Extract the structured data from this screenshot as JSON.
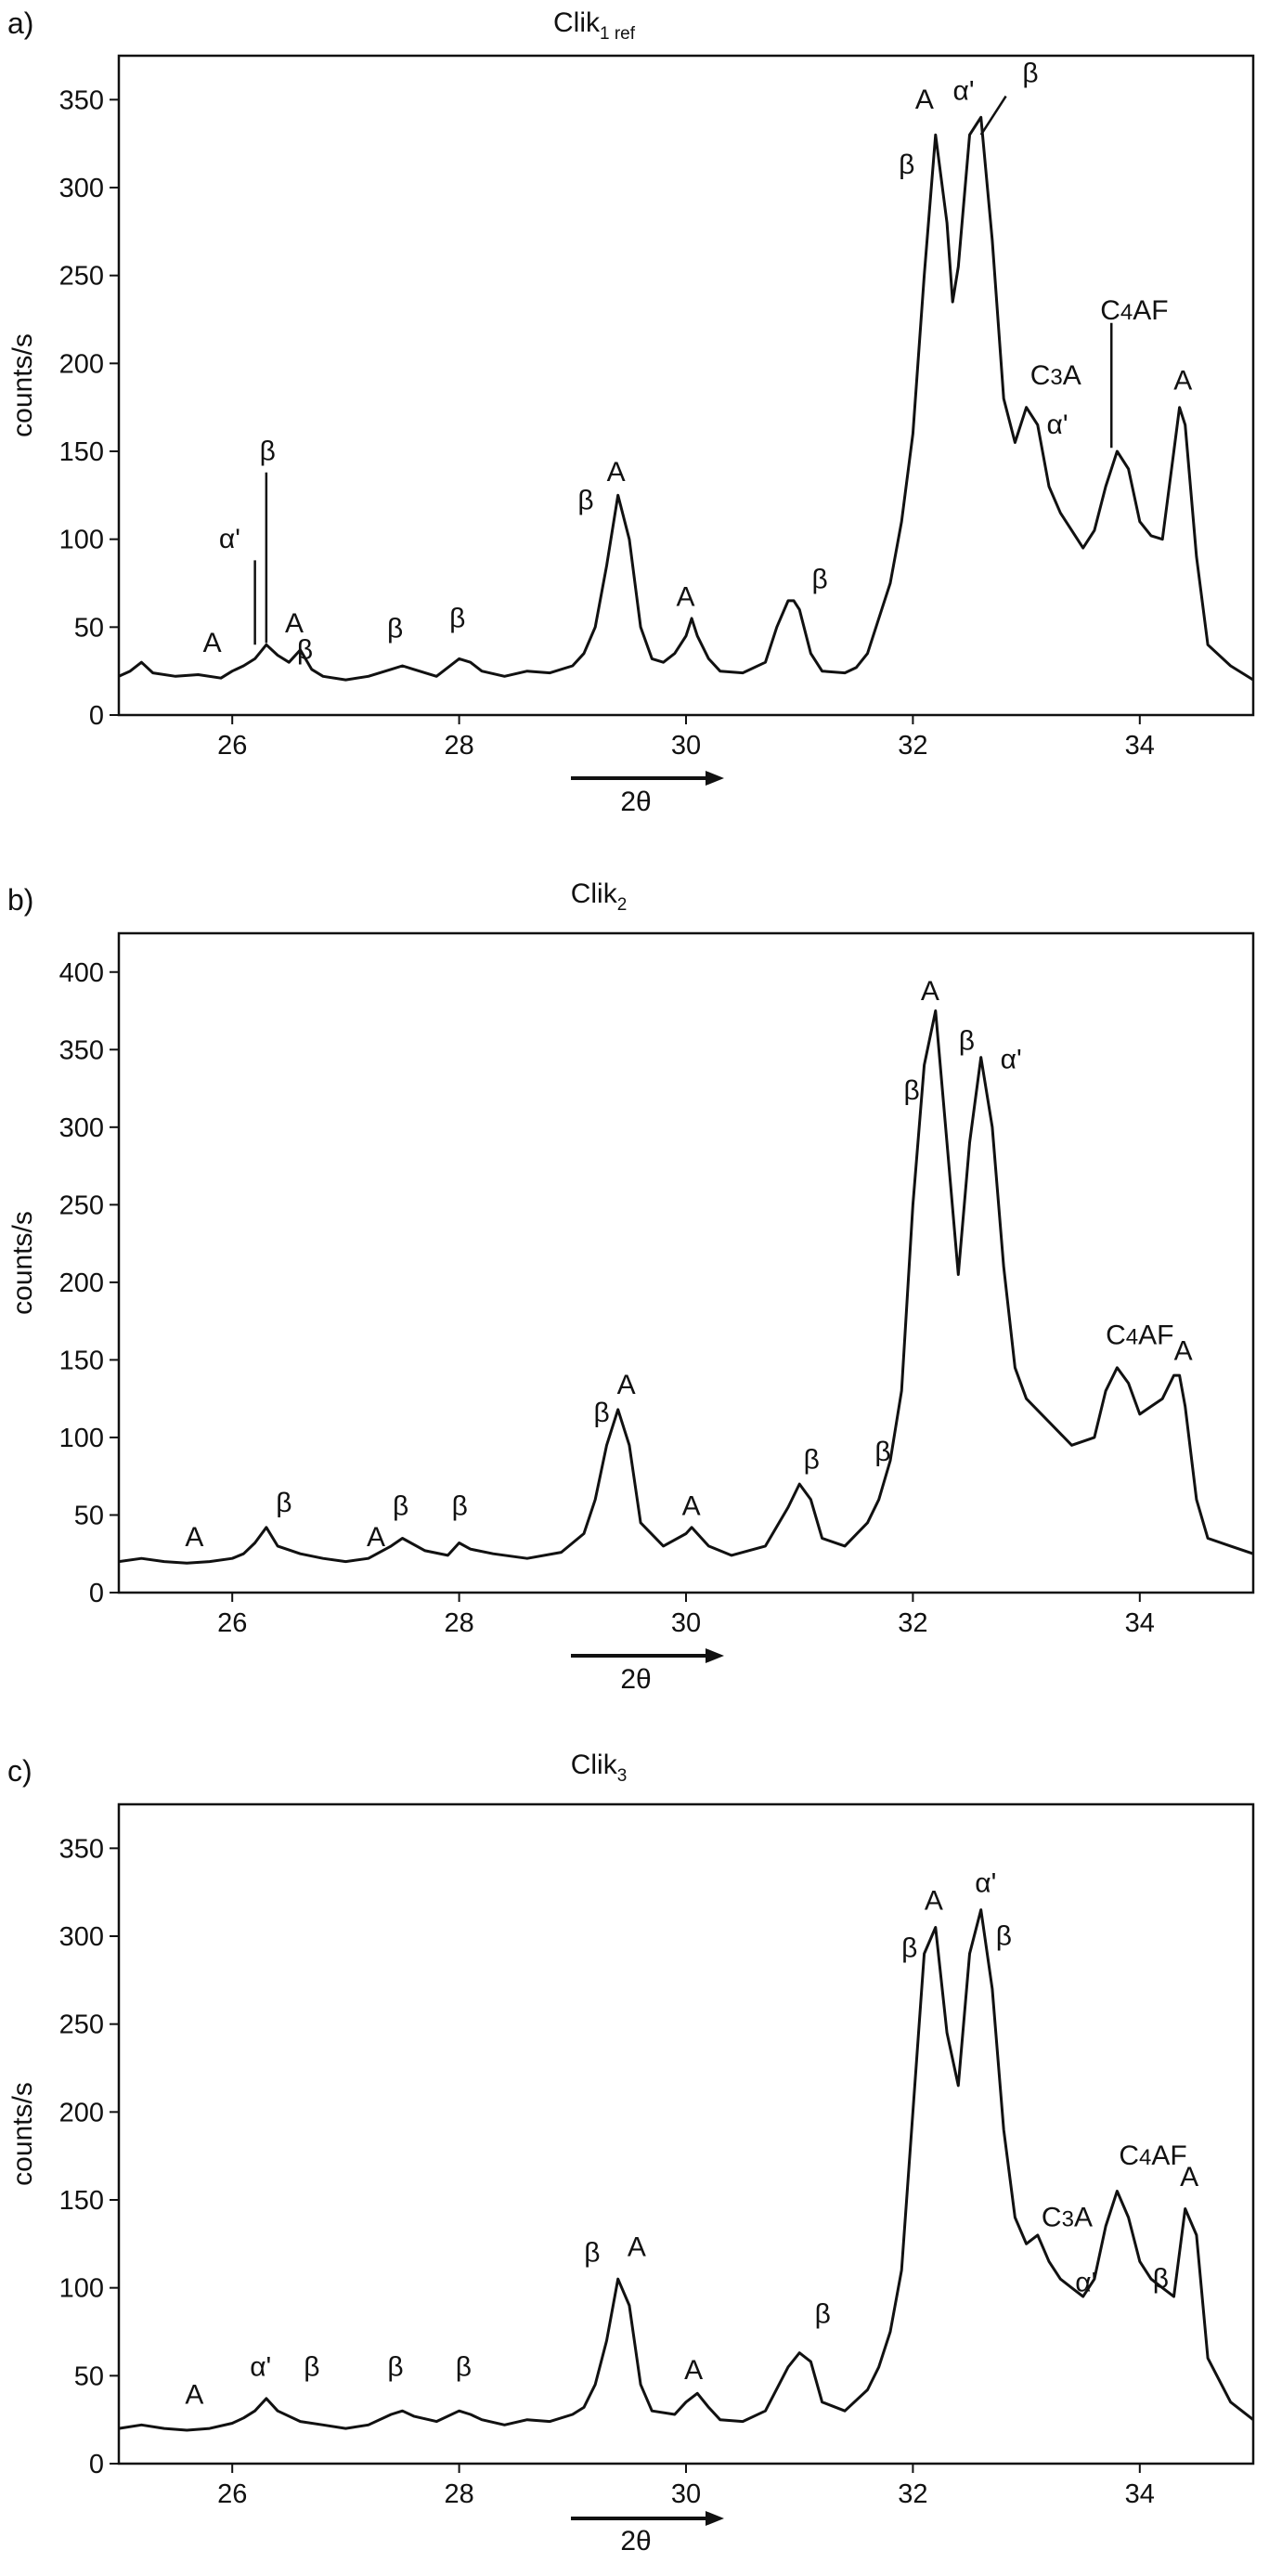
{
  "chart_data": [
    {
      "type": "line",
      "panel_label": "a)",
      "title_main": "Clik",
      "title_sub": "1 ref",
      "xlabel": "2θ",
      "ylabel": "counts/s",
      "xlim": [
        25,
        35
      ],
      "ylim": [
        0,
        375
      ],
      "xticks": [
        26,
        28,
        30,
        32,
        34
      ],
      "yticks": [
        0,
        50,
        100,
        150,
        200,
        250,
        300,
        350
      ],
      "series": [
        {
          "x": [
            25.0,
            25.1,
            25.2,
            25.3,
            25.5,
            25.7,
            25.9,
            26.0,
            26.1,
            26.2,
            26.3,
            26.4,
            26.5,
            26.6,
            26.7,
            26.8,
            27.0,
            27.2,
            27.4,
            27.5,
            27.6,
            27.8,
            28.0,
            28.1,
            28.2,
            28.4,
            28.6,
            28.8,
            29.0,
            29.1,
            29.2,
            29.3,
            29.4,
            29.5,
            29.6,
            29.7,
            29.8,
            29.9,
            30.0,
            30.05,
            30.1,
            30.2,
            30.3,
            30.5,
            30.7,
            30.8,
            30.9,
            30.95,
            31.0,
            31.1,
            31.2,
            31.4,
            31.5,
            31.6,
            31.7,
            31.8,
            31.9,
            32.0,
            32.1,
            32.2,
            32.3,
            32.35,
            32.4,
            32.5,
            32.6,
            32.7,
            32.8,
            32.9,
            33.0,
            33.1,
            33.2,
            33.3,
            33.4,
            33.5,
            33.6,
            33.7,
            33.8,
            33.9,
            34.0,
            34.1,
            34.2,
            34.3,
            34.35,
            34.4,
            34.5,
            34.6,
            34.8,
            35.0
          ],
          "y": [
            22,
            25,
            30,
            24,
            22,
            23,
            21,
            25,
            28,
            32,
            40,
            34,
            30,
            37,
            26,
            22,
            20,
            22,
            26,
            28,
            26,
            22,
            32,
            30,
            25,
            22,
            25,
            24,
            28,
            35,
            50,
            85,
            125,
            100,
            50,
            32,
            30,
            35,
            45,
            55,
            45,
            32,
            25,
            24,
            30,
            50,
            65,
            65,
            60,
            35,
            25,
            24,
            27,
            35,
            55,
            75,
            110,
            160,
            250,
            330,
            280,
            235,
            255,
            330,
            340,
            270,
            180,
            155,
            175,
            165,
            130,
            115,
            105,
            95,
            105,
            130,
            150,
            140,
            110,
            102,
            100,
            150,
            175,
            165,
            90,
            40,
            28,
            20
          ]
        }
      ],
      "annotations": [
        "β",
        "A",
        "α'",
        "β",
        "C3A",
        "α'",
        "C4AF",
        "A",
        "β",
        "A",
        "A",
        "β",
        "α'",
        "β",
        "A",
        "A",
        "β",
        "β",
        "β"
      ]
    },
    {
      "type": "line",
      "panel_label": "b)",
      "title_main": "Clik",
      "title_sub": "2",
      "xlabel": "2θ",
      "ylabel": "counts/s",
      "xlim": [
        25,
        35
      ],
      "ylim": [
        0,
        425
      ],
      "xticks": [
        26,
        28,
        30,
        32,
        34
      ],
      "yticks": [
        0,
        50,
        100,
        150,
        200,
        250,
        300,
        350,
        400
      ],
      "series": [
        {
          "x": [
            25.0,
            25.2,
            25.4,
            25.6,
            25.8,
            26.0,
            26.1,
            26.2,
            26.3,
            26.4,
            26.6,
            26.8,
            27.0,
            27.2,
            27.4,
            27.5,
            27.7,
            27.9,
            28.0,
            28.1,
            28.3,
            28.6,
            28.9,
            29.1,
            29.2,
            29.3,
            29.4,
            29.5,
            29.6,
            29.8,
            30.0,
            30.05,
            30.2,
            30.4,
            30.7,
            30.9,
            31.0,
            31.1,
            31.2,
            31.4,
            31.6,
            31.7,
            31.8,
            31.9,
            32.0,
            32.1,
            32.2,
            32.3,
            32.4,
            32.5,
            32.6,
            32.7,
            32.8,
            32.9,
            33.0,
            33.2,
            33.4,
            33.6,
            33.7,
            33.8,
            33.9,
            34.0,
            34.1,
            34.2,
            34.3,
            34.35,
            34.4,
            34.5,
            34.6,
            34.8,
            35.0
          ],
          "y": [
            20,
            22,
            20,
            19,
            20,
            22,
            25,
            32,
            42,
            30,
            25,
            22,
            20,
            22,
            30,
            35,
            27,
            24,
            32,
            28,
            25,
            22,
            26,
            38,
            60,
            95,
            118,
            95,
            45,
            30,
            38,
            42,
            30,
            24,
            30,
            55,
            70,
            60,
            35,
            30,
            45,
            60,
            85,
            130,
            250,
            340,
            375,
            290,
            205,
            290,
            345,
            300,
            210,
            145,
            125,
            110,
            95,
            100,
            130,
            145,
            135,
            115,
            120,
            125,
            140,
            140,
            120,
            60,
            35,
            30,
            25
          ]
        }
      ],
      "annotations": [
        "A",
        "β",
        "A",
        "β",
        "β",
        "β",
        "A",
        "A",
        "β",
        "β",
        "β",
        "A",
        "β",
        "α'",
        "C4AF",
        "A"
      ]
    },
    {
      "type": "line",
      "panel_label": "c)",
      "title_main": "Clik",
      "title_sub": "3",
      "xlabel": "2θ",
      "ylabel": "counts/s",
      "xlim": [
        25,
        35
      ],
      "ylim": [
        0,
        375
      ],
      "xticks": [
        26,
        28,
        30,
        32,
        34
      ],
      "yticks": [
        0,
        50,
        100,
        150,
        200,
        250,
        300,
        350
      ],
      "series": [
        {
          "x": [
            25.0,
            25.2,
            25.4,
            25.6,
            25.8,
            26.0,
            26.1,
            26.2,
            26.3,
            26.4,
            26.6,
            26.8,
            27.0,
            27.2,
            27.4,
            27.5,
            27.6,
            27.8,
            28.0,
            28.1,
            28.2,
            28.4,
            28.6,
            28.8,
            29.0,
            29.1,
            29.2,
            29.3,
            29.4,
            29.5,
            29.6,
            29.7,
            29.9,
            30.0,
            30.1,
            30.2,
            30.3,
            30.5,
            30.7,
            30.9,
            31.0,
            31.1,
            31.2,
            31.4,
            31.6,
            31.7,
            31.8,
            31.9,
            32.0,
            32.1,
            32.2,
            32.3,
            32.4,
            32.5,
            32.6,
            32.7,
            32.8,
            32.9,
            33.0,
            33.1,
            33.2,
            33.3,
            33.4,
            33.5,
            33.6,
            33.7,
            33.8,
            33.9,
            34.0,
            34.1,
            34.2,
            34.3,
            34.4,
            34.5,
            34.6,
            34.8,
            35.0
          ],
          "y": [
            20,
            22,
            20,
            19,
            20,
            23,
            26,
            30,
            37,
            30,
            24,
            22,
            20,
            22,
            28,
            30,
            27,
            24,
            30,
            28,
            25,
            22,
            25,
            24,
            28,
            32,
            45,
            70,
            105,
            90,
            45,
            30,
            28,
            35,
            40,
            32,
            25,
            24,
            30,
            55,
            63,
            58,
            35,
            30,
            42,
            55,
            75,
            110,
            200,
            290,
            305,
            245,
            215,
            290,
            315,
            270,
            190,
            140,
            125,
            130,
            115,
            105,
            100,
            95,
            105,
            135,
            155,
            140,
            115,
            105,
            100,
            95,
            145,
            130,
            60,
            35,
            25
          ]
        }
      ],
      "annotations": [
        "A",
        "α'",
        "β",
        "β",
        "β",
        "β",
        "A",
        "A",
        "β",
        "β",
        "A",
        "α'",
        "β",
        "C3A",
        "α'",
        "C4AF",
        "β",
        "A"
      ]
    }
  ]
}
